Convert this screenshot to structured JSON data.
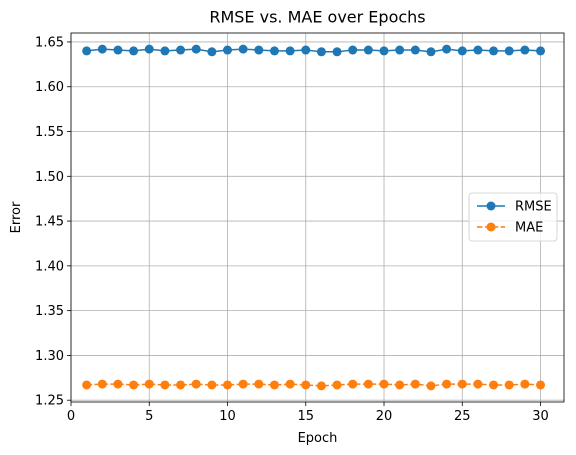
{
  "chart_data": {
    "type": "line",
    "title": "RMSE vs. MAE over Epochs",
    "xlabel": "Epoch",
    "ylabel": "Error",
    "xlim": [
      0,
      31.5
    ],
    "ylim": [
      1.248,
      1.66
    ],
    "xticks": [
      0,
      5,
      10,
      15,
      20,
      25,
      30
    ],
    "yticks": [
      1.25,
      1.3,
      1.35,
      1.4,
      1.45,
      1.5,
      1.55,
      1.6,
      1.65
    ],
    "grid": true,
    "legend": "center-right",
    "x": [
      1,
      2,
      3,
      4,
      5,
      6,
      7,
      8,
      9,
      10,
      11,
      12,
      13,
      14,
      15,
      16,
      17,
      18,
      19,
      20,
      21,
      22,
      23,
      24,
      25,
      26,
      27,
      28,
      29,
      30
    ],
    "series": [
      {
        "name": "RMSE",
        "color": "#1f77b4",
        "linestyle": "solid",
        "values": [
          1.64,
          1.642,
          1.641,
          1.64,
          1.642,
          1.64,
          1.641,
          1.642,
          1.639,
          1.641,
          1.642,
          1.641,
          1.64,
          1.64,
          1.641,
          1.639,
          1.639,
          1.641,
          1.641,
          1.64,
          1.641,
          1.641,
          1.639,
          1.642,
          1.64,
          1.641,
          1.64,
          1.64,
          1.641,
          1.64
        ]
      },
      {
        "name": "MAE",
        "color": "#ff7f0e",
        "linestyle": "dashed",
        "values": [
          1.267,
          1.268,
          1.268,
          1.267,
          1.268,
          1.267,
          1.267,
          1.268,
          1.267,
          1.267,
          1.268,
          1.268,
          1.267,
          1.268,
          1.267,
          1.266,
          1.267,
          1.268,
          1.268,
          1.268,
          1.267,
          1.268,
          1.266,
          1.268,
          1.268,
          1.268,
          1.267,
          1.267,
          1.268,
          1.267
        ]
      }
    ]
  }
}
